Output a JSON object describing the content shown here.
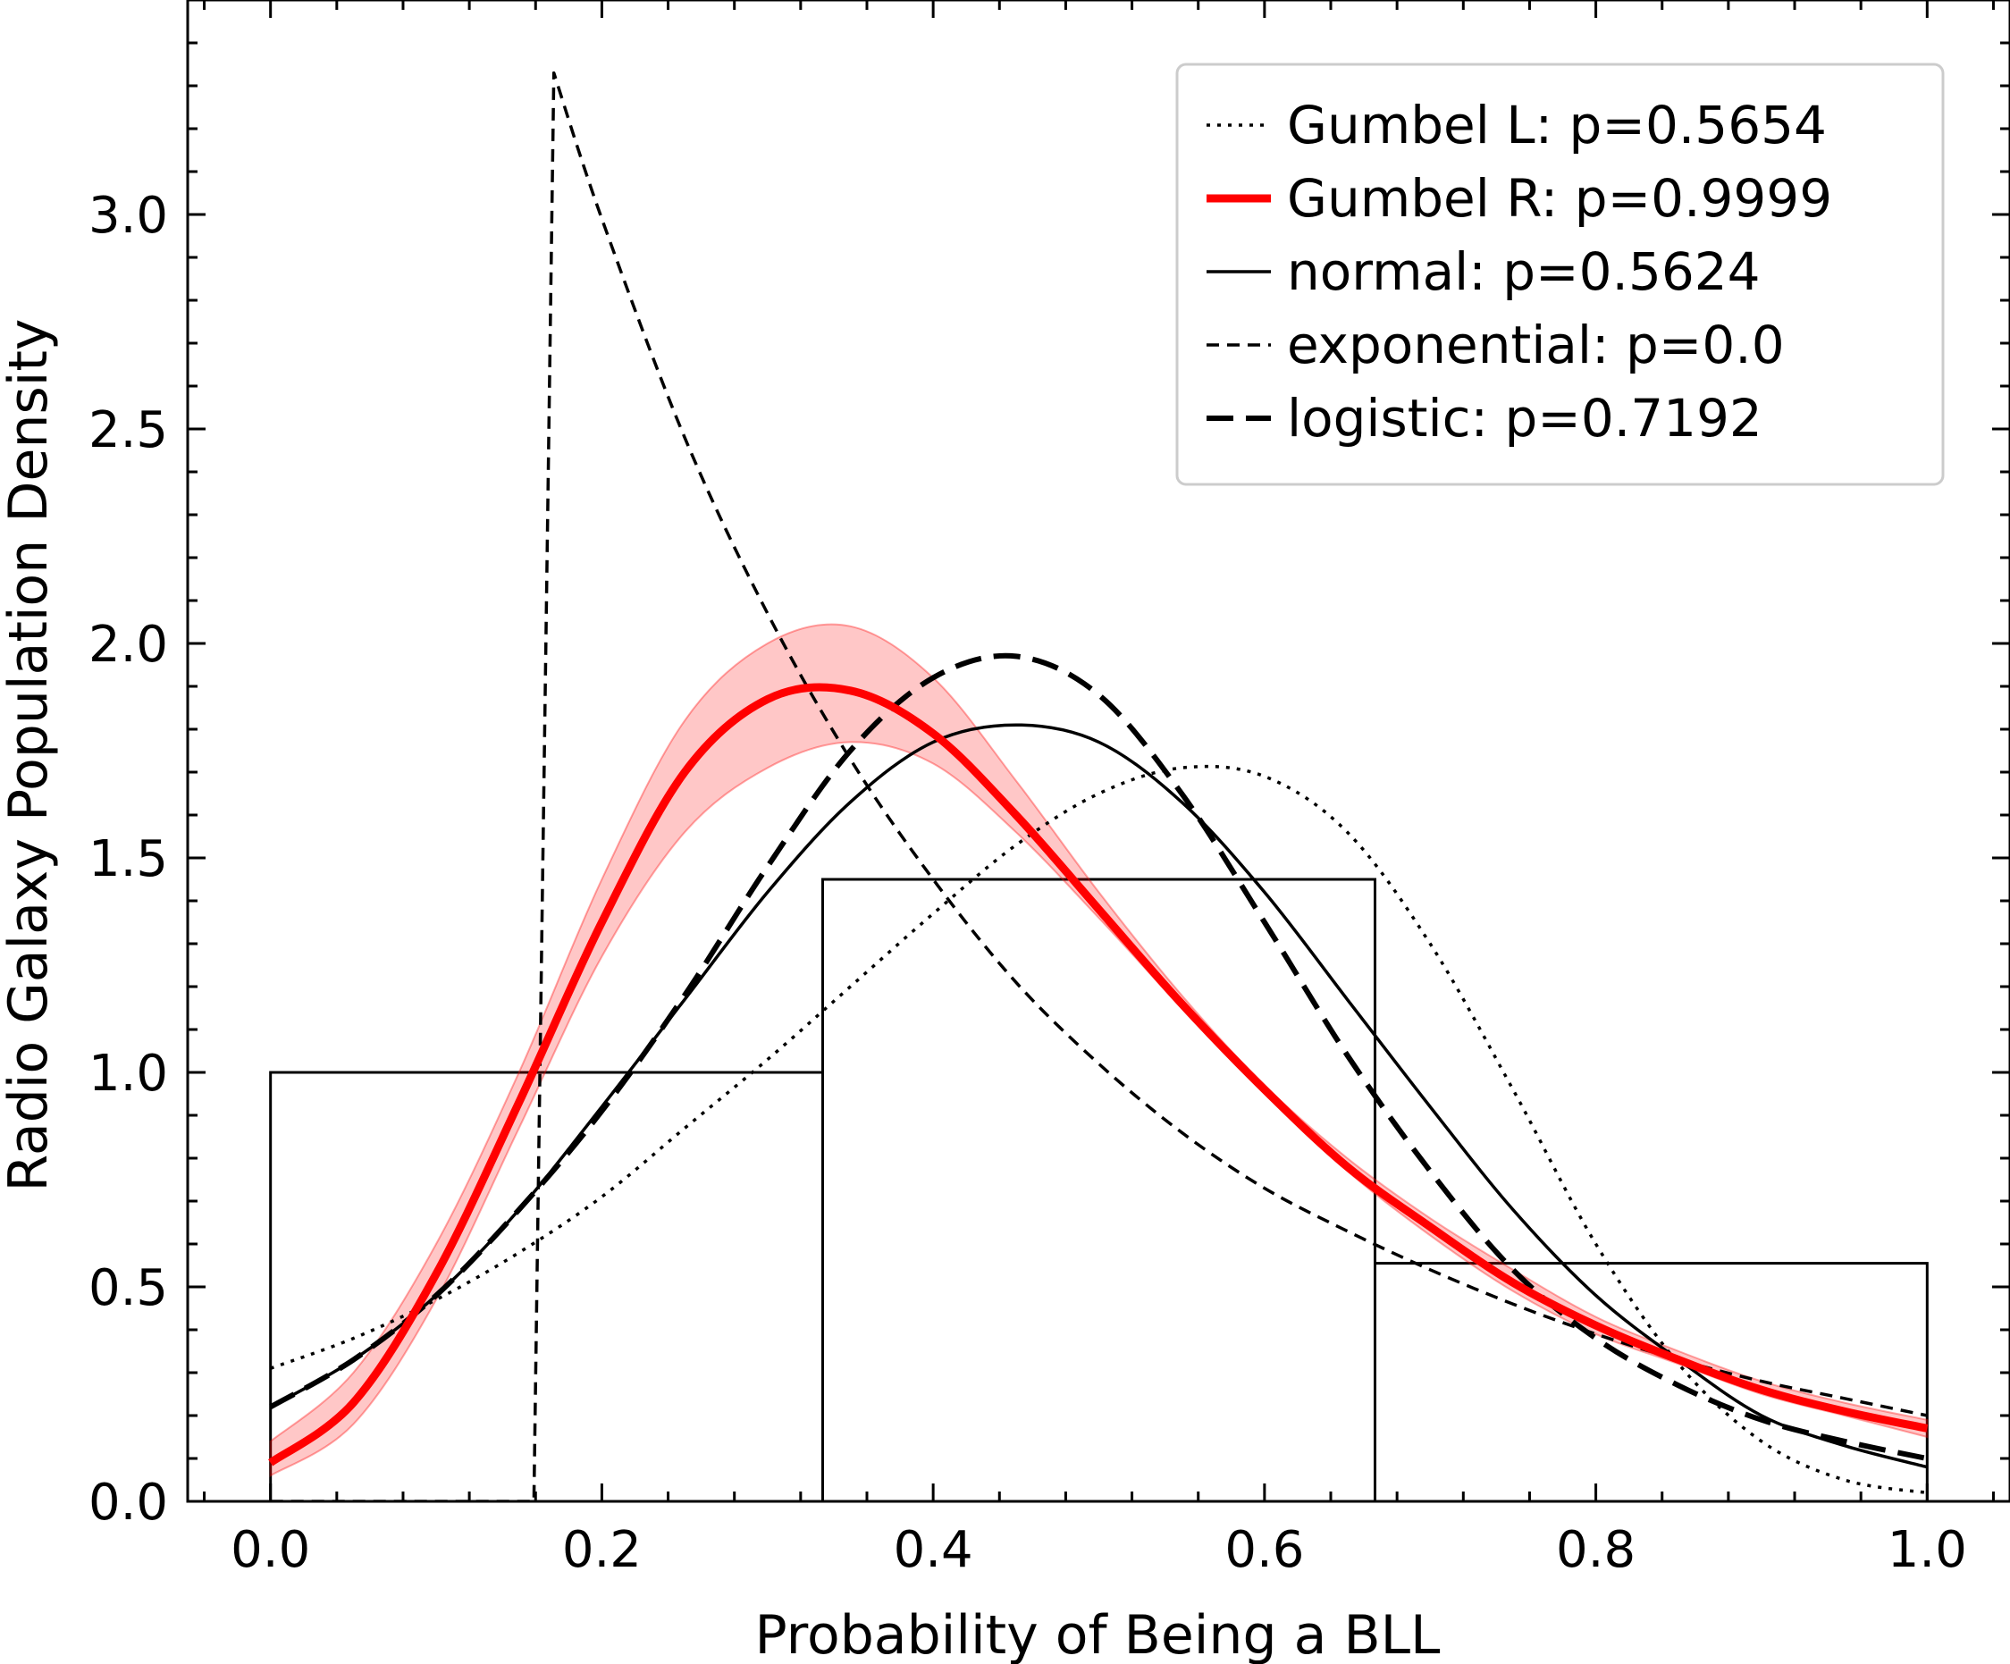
{
  "chart_data": {
    "type": "histogram+line",
    "xlabel": "Probability of Being a BLL",
    "ylabel": "Radio Galaxy Population Density",
    "xlim": [
      -0.05,
      1.05
    ],
    "ylim": [
      0.0,
      3.5
    ],
    "xticks": [
      0.0,
      0.2,
      0.4,
      0.6,
      0.8,
      1.0
    ],
    "xtick_labels": [
      "0.0",
      "0.2",
      "0.4",
      "0.6",
      "0.8",
      "1.0"
    ],
    "yticks": [
      0.0,
      0.5,
      1.0,
      1.5,
      2.0,
      2.5,
      3.0
    ],
    "ytick_labels": [
      "0.0",
      "0.5",
      "1.0",
      "1.5",
      "2.0",
      "2.5",
      "3.0"
    ],
    "ticks_direction": "in",
    "minor_ticks": true,
    "grid": false,
    "legend_position": "top-right",
    "histogram": {
      "bin_edges": [
        0.0,
        0.3333,
        0.6667,
        1.0
      ],
      "heights": [
        1.0,
        1.45,
        0.555
      ],
      "edge_color": "#000000",
      "fill": "none"
    },
    "series": [
      {
        "name": "Gumbel L: p=0.5654",
        "style": "dotted",
        "color": "#000000",
        "x": [
          0.0,
          0.05,
          0.1,
          0.15,
          0.2,
          0.25,
          0.3,
          0.35,
          0.4,
          0.45,
          0.5,
          0.55,
          0.6,
          0.65,
          0.7,
          0.75,
          0.8,
          0.85,
          0.9,
          0.95,
          1.0
        ],
        "y": [
          0.31,
          0.38,
          0.47,
          0.58,
          0.71,
          0.87,
          1.03,
          1.2,
          1.37,
          1.53,
          1.65,
          1.71,
          1.69,
          1.56,
          1.3,
          0.96,
          0.6,
          0.32,
          0.14,
          0.05,
          0.02
        ]
      },
      {
        "name": "Gumbel R: p=0.9999",
        "style": "solid-thick",
        "color": "#ff0000",
        "band_color": "#ff0000",
        "x": [
          0.0,
          0.05,
          0.1,
          0.15,
          0.2,
          0.25,
          0.3,
          0.35,
          0.4,
          0.45,
          0.5,
          0.55,
          0.6,
          0.65,
          0.7,
          0.75,
          0.8,
          0.85,
          0.9,
          0.95,
          1.0
        ],
        "y": [
          0.09,
          0.23,
          0.53,
          0.93,
          1.35,
          1.7,
          1.87,
          1.89,
          1.79,
          1.6,
          1.38,
          1.16,
          0.96,
          0.78,
          0.64,
          0.51,
          0.41,
          0.33,
          0.26,
          0.21,
          0.17
        ],
        "band_lower": [
          0.06,
          0.18,
          0.47,
          0.87,
          1.27,
          1.56,
          1.71,
          1.77,
          1.72,
          1.56,
          1.36,
          1.15,
          0.95,
          0.77,
          0.62,
          0.49,
          0.39,
          0.32,
          0.25,
          0.2,
          0.15
        ],
        "band_upper": [
          0.14,
          0.3,
          0.6,
          1.0,
          1.45,
          1.82,
          2.0,
          2.04,
          1.92,
          1.68,
          1.42,
          1.18,
          0.97,
          0.8,
          0.66,
          0.54,
          0.43,
          0.35,
          0.28,
          0.23,
          0.19
        ]
      },
      {
        "name": "normal: p=0.5624",
        "style": "solid",
        "color": "#000000",
        "x": [
          0.0,
          0.05,
          0.1,
          0.15,
          0.2,
          0.25,
          0.3,
          0.35,
          0.4,
          0.45,
          0.5,
          0.55,
          0.6,
          0.65,
          0.7,
          0.75,
          0.8,
          0.85,
          0.9,
          0.95,
          1.0
        ],
        "y": [
          0.22,
          0.33,
          0.48,
          0.68,
          0.92,
          1.17,
          1.42,
          1.63,
          1.77,
          1.81,
          1.77,
          1.63,
          1.42,
          1.17,
          0.92,
          0.68,
          0.48,
          0.33,
          0.2,
          0.13,
          0.08
        ]
      },
      {
        "name": "exponential: p=0.0",
        "style": "dashed",
        "color": "#000000",
        "x": [
          0.0,
          0.159,
          0.171,
          0.2,
          0.25,
          0.3,
          0.35,
          0.4,
          0.45,
          0.5,
          0.55,
          0.6,
          0.65,
          0.7,
          0.75,
          0.8,
          0.85,
          0.9,
          0.95,
          1.0
        ],
        "y": [
          0.0,
          0.0,
          3.33,
          2.99,
          2.48,
          2.07,
          1.73,
          1.45,
          1.21,
          1.02,
          0.86,
          0.73,
          0.63,
          0.54,
          0.46,
          0.39,
          0.33,
          0.28,
          0.24,
          0.2
        ]
      },
      {
        "name": "logistic: p=0.7192",
        "style": "long-dashed",
        "color": "#000000",
        "x": [
          0.0,
          0.05,
          0.1,
          0.15,
          0.2,
          0.25,
          0.3,
          0.35,
          0.4,
          0.45,
          0.5,
          0.55,
          0.6,
          0.65,
          0.7,
          0.75,
          0.8,
          0.85,
          0.9,
          0.95,
          1.0
        ],
        "y": [
          0.22,
          0.33,
          0.48,
          0.68,
          0.91,
          1.18,
          1.48,
          1.75,
          1.92,
          1.97,
          1.88,
          1.65,
          1.35,
          1.04,
          0.77,
          0.54,
          0.38,
          0.27,
          0.19,
          0.14,
          0.1
        ]
      }
    ]
  }
}
